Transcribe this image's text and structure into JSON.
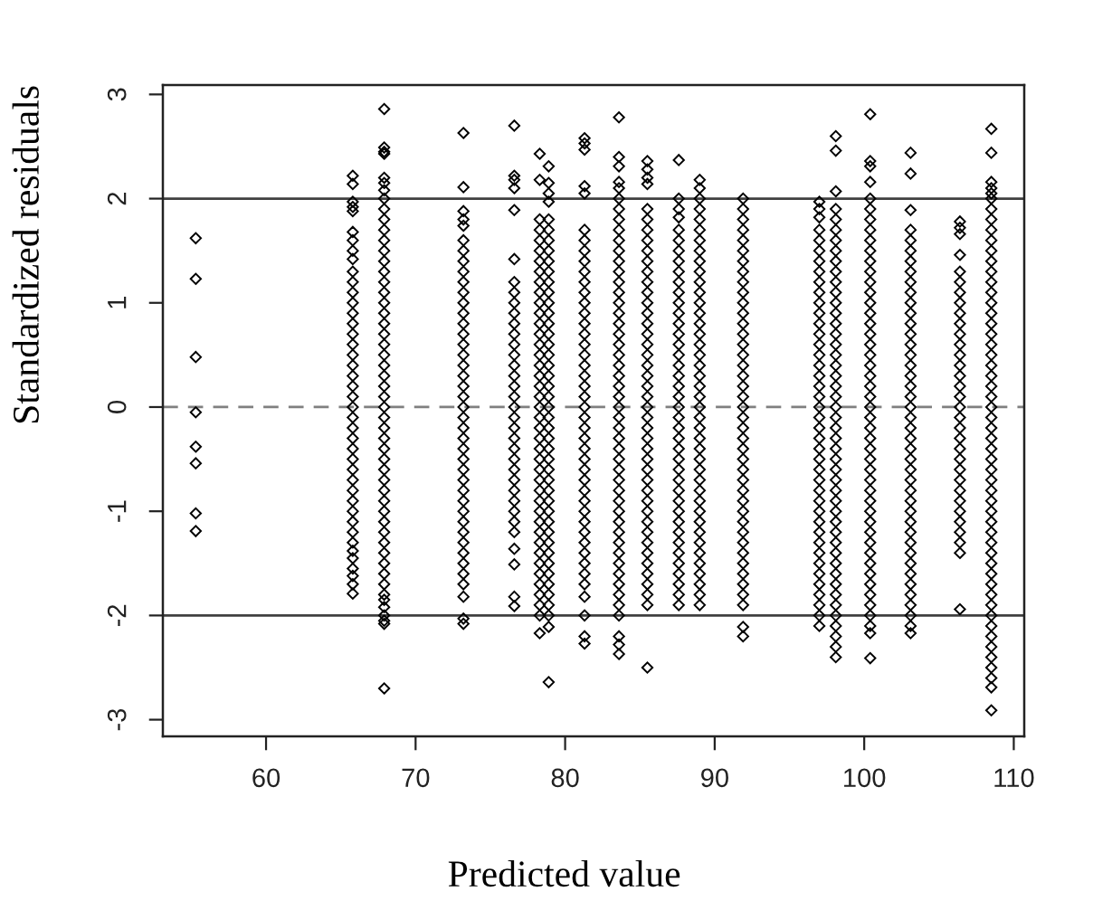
{
  "chart_data": {
    "type": "scatter",
    "xlabel": "Predicted value",
    "ylabel": "Standardized residuals",
    "marker": "diamond",
    "xlim": [
      53.1,
      110.7
    ],
    "ylim": [
      -3.16,
      3.09
    ],
    "xticks": [
      60,
      70,
      80,
      90,
      100,
      110
    ],
    "yticks": [
      -3,
      -2,
      -1,
      0,
      1,
      2,
      3
    ],
    "ref_lines": [
      {
        "axis": "y",
        "value": 2,
        "color": "#404040",
        "line_style": "solid"
      },
      {
        "axis": "y",
        "value": 0,
        "color": "#808080",
        "line_style": "dashed"
      },
      {
        "axis": "y",
        "value": -2,
        "color": "#404040",
        "line_style": "solid"
      }
    ],
    "series": [
      {
        "color": "#000000",
        "x": [
          55.3,
          55.3,
          55.3,
          55.3,
          55.3,
          55.3,
          55.3,
          55.3
        ],
        "values": [
          1.62,
          1.23,
          0.48,
          -0.05,
          -0.38,
          -0.54,
          -1.02,
          -1.19
        ]
      },
      {
        "color": "#000000",
        "x": [
          65.8,
          65.8,
          65.8,
          65.8,
          65.8,
          65.8,
          65.8,
          65.8,
          65.8,
          65.8,
          65.8,
          65.8,
          65.8,
          65.8,
          65.8,
          65.8,
          65.8,
          65.8,
          65.8,
          65.8,
          65.8,
          65.8,
          65.8,
          65.8,
          65.8,
          65.8,
          65.8,
          65.8,
          65.8,
          65.8,
          65.8,
          65.8,
          65.8,
          65.8,
          65.8,
          65.8,
          65.8,
          65.8,
          65.8,
          65.8,
          65.8,
          65.8
        ],
        "values": [
          2.22,
          2.14,
          1.97,
          1.92,
          1.88,
          1.68,
          1.6,
          1.5,
          1.42,
          1.3,
          1.2,
          1.1,
          1,
          0.9,
          0.8,
          0.7,
          0.6,
          0.5,
          0.4,
          0.3,
          0.2,
          0.1,
          0,
          -0.1,
          -0.2,
          -0.3,
          -0.4,
          -0.5,
          -0.6,
          -0.7,
          -0.8,
          -0.9,
          -1,
          -1.1,
          -1.2,
          -1.3,
          -1.38,
          -1.45,
          -1.55,
          -1.62,
          -1.7,
          -1.79
        ]
      },
      {
        "color": "#000000",
        "x": [
          67.9,
          67.9,
          67.9,
          67.9,
          67.9,
          67.9,
          67.9,
          67.9,
          67.9,
          67.9,
          67.9,
          67.9,
          67.9,
          67.9,
          67.9,
          67.9,
          67.9,
          67.9,
          67.9,
          67.9,
          67.9,
          67.9,
          67.9,
          67.9,
          67.9,
          67.9,
          67.9,
          67.9,
          67.9,
          67.9,
          67.9,
          67.9,
          67.9,
          67.9,
          67.9,
          67.9,
          67.9,
          67.9,
          67.9,
          67.9,
          67.9,
          67.9,
          67.9,
          67.9,
          67.9,
          67.9,
          67.9,
          67.9,
          67.9,
          67.9,
          67.9,
          67.9
        ],
        "values": [
          2.86,
          2.49,
          2.45,
          2.43,
          2.2,
          2.15,
          2.08,
          2,
          1.9,
          1.8,
          1.7,
          1.6,
          1.5,
          1.4,
          1.3,
          1.2,
          1.1,
          1,
          0.9,
          0.8,
          0.7,
          0.6,
          0.5,
          0.4,
          0.3,
          0.2,
          0.1,
          0,
          -0.1,
          -0.2,
          -0.3,
          -0.4,
          -0.5,
          -0.6,
          -0.7,
          -0.8,
          -0.9,
          -1,
          -1.1,
          -1.2,
          -1.3,
          -1.4,
          -1.5,
          -1.6,
          -1.7,
          -1.8,
          -1.85,
          -1.92,
          -2,
          -2.05,
          -2.08,
          -2.7
        ]
      },
      {
        "color": "#000000",
        "x": [
          73.2,
          73.2,
          73.2,
          73.2,
          73.2,
          73.2,
          73.2,
          73.2,
          73.2,
          73.2,
          73.2,
          73.2,
          73.2,
          73.2,
          73.2,
          73.2,
          73.2,
          73.2,
          73.2,
          73.2,
          73.2,
          73.2,
          73.2,
          73.2,
          73.2,
          73.2,
          73.2,
          73.2,
          73.2,
          73.2,
          73.2,
          73.2,
          73.2,
          73.2,
          73.2,
          73.2,
          73.2,
          73.2,
          73.2,
          73.2,
          73.2,
          73.2
        ],
        "values": [
          2.63,
          2.11,
          1.88,
          1.8,
          1.74,
          1.6,
          1.5,
          1.4,
          1.3,
          1.2,
          1.1,
          1,
          0.9,
          0.8,
          0.7,
          0.6,
          0.5,
          0.4,
          0.3,
          0.2,
          0.1,
          0,
          -0.1,
          -0.2,
          -0.3,
          -0.4,
          -0.5,
          -0.6,
          -0.7,
          -0.8,
          -0.9,
          -1,
          -1.1,
          -1.2,
          -1.3,
          -1.4,
          -1.5,
          -1.6,
          -1.7,
          -1.82,
          -2.03,
          -2.08
        ]
      },
      {
        "color": "#000000",
        "x": [
          76.6,
          76.6,
          76.6,
          76.6,
          76.6,
          76.6,
          76.6,
          76.6,
          76.6,
          76.6,
          76.6,
          76.6,
          76.6,
          76.6,
          76.6,
          76.6,
          76.6,
          76.6,
          76.6,
          76.6,
          76.6,
          76.6,
          76.6,
          76.6,
          76.6,
          76.6,
          76.6,
          76.6,
          76.6,
          76.6,
          76.6,
          76.6,
          76.6,
          76.6,
          76.6
        ],
        "values": [
          2.7,
          2.22,
          2.18,
          2.1,
          1.89,
          1.42,
          1.2,
          1.1,
          1,
          0.9,
          0.8,
          0.7,
          0.6,
          0.5,
          0.4,
          0.3,
          0.2,
          0.1,
          0,
          -0.1,
          -0.2,
          -0.3,
          -0.4,
          -0.5,
          -0.6,
          -0.7,
          -0.8,
          -0.9,
          -1,
          -1.1,
          -1.2,
          -1.36,
          -1.51,
          -1.82,
          -1.91
        ]
      },
      {
        "color": "#000000",
        "x": [
          78.3,
          78.3,
          78.3,
          78.3,
          78.3,
          78.3,
          78.3,
          78.3,
          78.3,
          78.3,
          78.3,
          78.3,
          78.3,
          78.3,
          78.3,
          78.3,
          78.3,
          78.3,
          78.3,
          78.3,
          78.3,
          78.3,
          78.3,
          78.3,
          78.3,
          78.3,
          78.3,
          78.3,
          78.3,
          78.3,
          78.3,
          78.3,
          78.3,
          78.3,
          78.3,
          78.3,
          78.3,
          78.3,
          78.3,
          78.3,
          78.3,
          78.3
        ],
        "values": [
          2.43,
          2.18,
          1.8,
          1.7,
          1.6,
          1.5,
          1.4,
          1.3,
          1.2,
          1.1,
          1,
          0.9,
          0.8,
          0.7,
          0.6,
          0.5,
          0.4,
          0.3,
          0.2,
          0.1,
          0,
          -0.1,
          -0.2,
          -0.3,
          -0.4,
          -0.5,
          -0.6,
          -0.7,
          -0.8,
          -0.9,
          -1,
          -1.1,
          -1.2,
          -1.3,
          -1.4,
          -1.5,
          -1.6,
          -1.7,
          -1.8,
          -1.9,
          -2,
          -2.17
        ]
      },
      {
        "color": "#000000",
        "x": [
          78.9,
          78.9,
          78.9,
          78.9,
          78.9,
          78.9,
          78.9,
          78.9,
          78.9,
          78.9,
          78.9,
          78.9,
          78.9,
          78.9,
          78.9,
          78.9,
          78.9,
          78.9,
          78.9,
          78.9,
          78.9,
          78.9,
          78.9,
          78.9,
          78.9,
          78.9,
          78.9,
          78.9,
          78.9,
          78.9,
          78.9,
          78.9,
          78.9,
          78.9,
          78.9,
          78.9,
          78.9,
          78.9,
          78.9,
          78.9,
          78.9,
          78.9,
          78.9,
          78.9,
          78.9
        ],
        "values": [
          2.31,
          2.15,
          2.05,
          1.97,
          1.8,
          1.7,
          1.6,
          1.5,
          1.4,
          1.3,
          1.2,
          1.1,
          1,
          0.9,
          0.8,
          0.7,
          0.6,
          0.5,
          0.4,
          0.3,
          0.2,
          0.1,
          0,
          -0.1,
          -0.2,
          -0.3,
          -0.4,
          -0.5,
          -0.6,
          -0.7,
          -0.8,
          -0.9,
          -1,
          -1.1,
          -1.2,
          -1.3,
          -1.4,
          -1.5,
          -1.6,
          -1.7,
          -1.8,
          -1.9,
          -2,
          -2.11,
          -2.64
        ]
      },
      {
        "color": "#000000",
        "x": [
          81.3,
          81.3,
          81.3,
          81.3,
          81.3,
          81.3,
          81.3,
          81.3,
          81.3,
          81.3,
          81.3,
          81.3,
          81.3,
          81.3,
          81.3,
          81.3,
          81.3,
          81.3,
          81.3,
          81.3,
          81.3,
          81.3,
          81.3,
          81.3,
          81.3,
          81.3,
          81.3,
          81.3,
          81.3,
          81.3,
          81.3,
          81.3,
          81.3,
          81.3,
          81.3,
          81.3,
          81.3,
          81.3,
          81.3,
          81.3,
          81.3,
          81.3,
          81.3,
          81.3
        ],
        "values": [
          2.58,
          2.53,
          2.47,
          2.12,
          2.05,
          1.7,
          1.6,
          1.5,
          1.4,
          1.3,
          1.2,
          1.1,
          1,
          0.9,
          0.8,
          0.7,
          0.6,
          0.5,
          0.4,
          0.3,
          0.2,
          0.1,
          0,
          -0.1,
          -0.2,
          -0.3,
          -0.4,
          -0.5,
          -0.6,
          -0.7,
          -0.8,
          -0.9,
          -1,
          -1.1,
          -1.2,
          -1.3,
          -1.4,
          -1.5,
          -1.6,
          -1.7,
          -1.82,
          -2,
          -2.2,
          -2.27
        ]
      },
      {
        "color": "#000000",
        "x": [
          83.6,
          83.6,
          83.6,
          83.6,
          83.6,
          83.6,
          83.6,
          83.6,
          83.6,
          83.6,
          83.6,
          83.6,
          83.6,
          83.6,
          83.6,
          83.6,
          83.6,
          83.6,
          83.6,
          83.6,
          83.6,
          83.6,
          83.6,
          83.6,
          83.6,
          83.6,
          83.6,
          83.6,
          83.6,
          83.6,
          83.6,
          83.6,
          83.6,
          83.6,
          83.6,
          83.6,
          83.6,
          83.6,
          83.6,
          83.6,
          83.6,
          83.6,
          83.6,
          83.6,
          83.6,
          83.6,
          83.6,
          83.6,
          83.6
        ],
        "values": [
          2.78,
          2.4,
          2.31,
          2.16,
          2.1,
          2,
          1.9,
          1.8,
          1.7,
          1.6,
          1.5,
          1.4,
          1.3,
          1.2,
          1.1,
          1,
          0.9,
          0.8,
          0.7,
          0.6,
          0.5,
          0.4,
          0.3,
          0.2,
          0.1,
          0,
          -0.1,
          -0.2,
          -0.3,
          -0.4,
          -0.5,
          -0.6,
          -0.7,
          -0.8,
          -0.9,
          -1,
          -1.1,
          -1.2,
          -1.3,
          -1.4,
          -1.5,
          -1.6,
          -1.7,
          -1.8,
          -1.9,
          -2,
          -2.2,
          -2.28,
          -2.37
        ]
      },
      {
        "color": "#000000",
        "x": [
          85.5,
          85.5,
          85.5,
          85.5,
          85.5,
          85.5,
          85.5,
          85.5,
          85.5,
          85.5,
          85.5,
          85.5,
          85.5,
          85.5,
          85.5,
          85.5,
          85.5,
          85.5,
          85.5,
          85.5,
          85.5,
          85.5,
          85.5,
          85.5,
          85.5,
          85.5,
          85.5,
          85.5,
          85.5,
          85.5,
          85.5,
          85.5,
          85.5,
          85.5,
          85.5,
          85.5,
          85.5,
          85.5,
          85.5,
          85.5,
          85.5,
          85.5,
          85.5,
          85.5
        ],
        "values": [
          2.36,
          2.28,
          2.2,
          2.14,
          1.9,
          1.8,
          1.7,
          1.6,
          1.5,
          1.4,
          1.3,
          1.2,
          1.1,
          1,
          0.9,
          0.8,
          0.7,
          0.6,
          0.5,
          0.4,
          0.3,
          0.2,
          0.1,
          0,
          -0.1,
          -0.2,
          -0.3,
          -0.4,
          -0.5,
          -0.6,
          -0.7,
          -0.8,
          -0.9,
          -1,
          -1.1,
          -1.2,
          -1.3,
          -1.4,
          -1.5,
          -1.6,
          -1.7,
          -1.8,
          -1.9,
          -2.5
        ]
      },
      {
        "color": "#000000",
        "x": [
          87.6,
          87.6,
          87.6,
          87.6,
          87.6,
          87.6,
          87.6,
          87.6,
          87.6,
          87.6,
          87.6,
          87.6,
          87.6,
          87.6,
          87.6,
          87.6,
          87.6,
          87.6,
          87.6,
          87.6,
          87.6,
          87.6,
          87.6,
          87.6,
          87.6,
          87.6,
          87.6,
          87.6,
          87.6,
          87.6,
          87.6,
          87.6,
          87.6,
          87.6,
          87.6,
          87.6,
          87.6,
          87.6,
          87.6,
          87.6,
          87.6
        ],
        "values": [
          2.37,
          2,
          1.9,
          1.82,
          1.7,
          1.6,
          1.5,
          1.4,
          1.3,
          1.2,
          1.1,
          1,
          0.9,
          0.8,
          0.7,
          0.6,
          0.5,
          0.4,
          0.3,
          0.2,
          0.1,
          0,
          -0.1,
          -0.2,
          -0.3,
          -0.4,
          -0.5,
          -0.6,
          -0.7,
          -0.8,
          -0.9,
          -1,
          -1.1,
          -1.2,
          -1.3,
          -1.4,
          -1.5,
          -1.6,
          -1.7,
          -1.8,
          -1.9
        ]
      },
      {
        "color": "#000000",
        "x": [
          89,
          89,
          89,
          89,
          89,
          89,
          89,
          89,
          89,
          89,
          89,
          89,
          89,
          89,
          89,
          89,
          89,
          89,
          89,
          89,
          89,
          89,
          89,
          89,
          89,
          89,
          89,
          89,
          89,
          89,
          89,
          89,
          89,
          89,
          89,
          89,
          89,
          89,
          89,
          89,
          89,
          89
        ],
        "values": [
          2.18,
          2.1,
          2,
          1.9,
          1.8,
          1.7,
          1.6,
          1.5,
          1.4,
          1.3,
          1.2,
          1.1,
          1,
          0.9,
          0.8,
          0.7,
          0.6,
          0.5,
          0.4,
          0.3,
          0.2,
          0.1,
          0,
          -0.1,
          -0.2,
          -0.3,
          -0.4,
          -0.5,
          -0.6,
          -0.7,
          -0.8,
          -0.9,
          -1,
          -1.1,
          -1.2,
          -1.3,
          -1.4,
          -1.5,
          -1.6,
          -1.7,
          -1.8,
          -1.9
        ]
      },
      {
        "color": "#000000",
        "x": [
          91.9,
          91.9,
          91.9,
          91.9,
          91.9,
          91.9,
          91.9,
          91.9,
          91.9,
          91.9,
          91.9,
          91.9,
          91.9,
          91.9,
          91.9,
          91.9,
          91.9,
          91.9,
          91.9,
          91.9,
          91.9,
          91.9,
          91.9,
          91.9,
          91.9,
          91.9,
          91.9,
          91.9,
          91.9,
          91.9,
          91.9,
          91.9,
          91.9,
          91.9,
          91.9,
          91.9,
          91.9,
          91.9,
          91.9,
          91.9,
          91.9,
          91.9
        ],
        "values": [
          2,
          1.9,
          1.8,
          1.7,
          1.6,
          1.5,
          1.4,
          1.3,
          1.2,
          1.1,
          1,
          0.9,
          0.8,
          0.7,
          0.6,
          0.5,
          0.4,
          0.3,
          0.2,
          0.1,
          0,
          -0.1,
          -0.2,
          -0.3,
          -0.4,
          -0.5,
          -0.6,
          -0.7,
          -0.8,
          -0.9,
          -1,
          -1.1,
          -1.2,
          -1.3,
          -1.4,
          -1.5,
          -1.6,
          -1.7,
          -1.8,
          -1.9,
          -2.11,
          -2.2
        ]
      },
      {
        "color": "#000000",
        "x": [
          97,
          97,
          97,
          97,
          97,
          97,
          97,
          97,
          97,
          97,
          97,
          97,
          97,
          97,
          97,
          97,
          97,
          97,
          97,
          97,
          97,
          97,
          97,
          97,
          97,
          97,
          97,
          97,
          97,
          97,
          97,
          97,
          97,
          97,
          97,
          97,
          97,
          97,
          97,
          97,
          97,
          97
        ],
        "values": [
          1.97,
          1.9,
          1.82,
          1.7,
          1.6,
          1.5,
          1.4,
          1.3,
          1.2,
          1.1,
          1,
          0.9,
          0.8,
          0.7,
          0.6,
          0.5,
          0.4,
          0.3,
          0.2,
          0.1,
          0,
          -0.1,
          -0.2,
          -0.3,
          -0.4,
          -0.5,
          -0.6,
          -0.7,
          -0.8,
          -0.9,
          -1,
          -1.1,
          -1.2,
          -1.3,
          -1.4,
          -1.5,
          -1.6,
          -1.7,
          -1.8,
          -1.9,
          -2,
          -2.1
        ]
      },
      {
        "color": "#000000",
        "x": [
          98.1,
          98.1,
          98.1,
          98.1,
          98.1,
          98.1,
          98.1,
          98.1,
          98.1,
          98.1,
          98.1,
          98.1,
          98.1,
          98.1,
          98.1,
          98.1,
          98.1,
          98.1,
          98.1,
          98.1,
          98.1,
          98.1,
          98.1,
          98.1,
          98.1,
          98.1,
          98.1,
          98.1,
          98.1,
          98.1,
          98.1,
          98.1,
          98.1,
          98.1,
          98.1,
          98.1,
          98.1,
          98.1,
          98.1,
          98.1,
          98.1,
          98.1,
          98.1,
          98.1,
          98.1,
          98.1,
          98.1
        ],
        "values": [
          2.6,
          2.46,
          2.07,
          1.9,
          1.8,
          1.7,
          1.6,
          1.5,
          1.4,
          1.3,
          1.2,
          1.1,
          1,
          0.9,
          0.8,
          0.7,
          0.6,
          0.5,
          0.4,
          0.3,
          0.2,
          0.1,
          0,
          -0.1,
          -0.2,
          -0.3,
          -0.4,
          -0.5,
          -0.6,
          -0.7,
          -0.8,
          -0.9,
          -1,
          -1.1,
          -1.2,
          -1.3,
          -1.4,
          -1.5,
          -1.6,
          -1.7,
          -1.8,
          -1.9,
          -2,
          -2.1,
          -2.2,
          -2.3,
          -2.4
        ]
      },
      {
        "color": "#000000",
        "x": [
          100.4,
          100.4,
          100.4,
          100.4,
          100.4,
          100.4,
          100.4,
          100.4,
          100.4,
          100.4,
          100.4,
          100.4,
          100.4,
          100.4,
          100.4,
          100.4,
          100.4,
          100.4,
          100.4,
          100.4,
          100.4,
          100.4,
          100.4,
          100.4,
          100.4,
          100.4,
          100.4,
          100.4,
          100.4,
          100.4,
          100.4,
          100.4,
          100.4,
          100.4,
          100.4,
          100.4,
          100.4,
          100.4,
          100.4,
          100.4,
          100.4,
          100.4,
          100.4,
          100.4,
          100.4,
          100.4,
          100.4,
          100.4
        ],
        "values": [
          2.81,
          2.36,
          2.31,
          2.16,
          2,
          1.9,
          1.8,
          1.7,
          1.6,
          1.5,
          1.4,
          1.3,
          1.2,
          1.1,
          1,
          0.9,
          0.8,
          0.7,
          0.6,
          0.5,
          0.4,
          0.3,
          0.2,
          0.1,
          0,
          -0.1,
          -0.2,
          -0.3,
          -0.4,
          -0.5,
          -0.6,
          -0.7,
          -0.8,
          -0.9,
          -1,
          -1.1,
          -1.2,
          -1.3,
          -1.4,
          -1.5,
          -1.6,
          -1.7,
          -1.8,
          -1.9,
          -2,
          -2.1,
          -2.17,
          -2.41
        ]
      },
      {
        "color": "#000000",
        "x": [
          103.1,
          103.1,
          103.1,
          103.1,
          103.1,
          103.1,
          103.1,
          103.1,
          103.1,
          103.1,
          103.1,
          103.1,
          103.1,
          103.1,
          103.1,
          103.1,
          103.1,
          103.1,
          103.1,
          103.1,
          103.1,
          103.1,
          103.1,
          103.1,
          103.1,
          103.1,
          103.1,
          103.1,
          103.1,
          103.1,
          103.1,
          103.1,
          103.1,
          103.1,
          103.1,
          103.1,
          103.1,
          103.1,
          103.1,
          103.1,
          103.1,
          103.1,
          103.1
        ],
        "values": [
          2.44,
          2.24,
          1.89,
          1.7,
          1.6,
          1.5,
          1.4,
          1.3,
          1.2,
          1.1,
          1,
          0.9,
          0.8,
          0.7,
          0.6,
          0.5,
          0.4,
          0.3,
          0.2,
          0.1,
          0,
          -0.1,
          -0.2,
          -0.3,
          -0.4,
          -0.5,
          -0.6,
          -0.7,
          -0.8,
          -0.9,
          -1,
          -1.1,
          -1.2,
          -1.3,
          -1.4,
          -1.5,
          -1.6,
          -1.7,
          -1.8,
          -1.9,
          -2,
          -2.1,
          -2.17
        ]
      },
      {
        "color": "#000000",
        "x": [
          106.4,
          106.4,
          106.4,
          106.4,
          106.4,
          106.4,
          106.4,
          106.4,
          106.4,
          106.4,
          106.4,
          106.4,
          106.4,
          106.4,
          106.4,
          106.4,
          106.4,
          106.4,
          106.4,
          106.4,
          106.4,
          106.4,
          106.4,
          106.4,
          106.4,
          106.4,
          106.4,
          106.4,
          106.4,
          106.4,
          106.4,
          106.4,
          106.4
        ],
        "values": [
          1.78,
          1.72,
          1.66,
          1.46,
          1.3,
          1.2,
          1.1,
          1,
          0.9,
          0.8,
          0.7,
          0.6,
          0.5,
          0.4,
          0.3,
          0.2,
          0.1,
          0,
          -0.1,
          -0.2,
          -0.3,
          -0.4,
          -0.5,
          -0.6,
          -0.7,
          -0.8,
          -0.9,
          -1,
          -1.1,
          -1.2,
          -1.3,
          -1.4,
          -1.94
        ]
      },
      {
        "color": "#000000",
        "x": [
          108.5,
          108.5,
          108.5,
          108.5,
          108.5,
          108.5,
          108.5,
          108.5,
          108.5,
          108.5,
          108.5,
          108.5,
          108.5,
          108.5,
          108.5,
          108.5,
          108.5,
          108.5,
          108.5,
          108.5,
          108.5,
          108.5,
          108.5,
          108.5,
          108.5,
          108.5,
          108.5,
          108.5,
          108.5,
          108.5,
          108.5,
          108.5,
          108.5,
          108.5,
          108.5,
          108.5,
          108.5,
          108.5,
          108.5,
          108.5,
          108.5,
          108.5,
          108.5,
          108.5,
          108.5,
          108.5,
          108.5,
          108.5,
          108.5,
          108.5,
          108.5,
          108.5,
          108.5,
          108.5
        ],
        "values": [
          2.67,
          2.44,
          2.16,
          2.1,
          2.05,
          2,
          1.9,
          1.8,
          1.7,
          1.6,
          1.5,
          1.4,
          1.3,
          1.2,
          1.1,
          1,
          0.9,
          0.8,
          0.7,
          0.6,
          0.5,
          0.4,
          0.3,
          0.2,
          0.1,
          0,
          -0.1,
          -0.2,
          -0.3,
          -0.4,
          -0.5,
          -0.6,
          -0.7,
          -0.8,
          -0.9,
          -1,
          -1.1,
          -1.2,
          -1.3,
          -1.4,
          -1.5,
          -1.6,
          -1.7,
          -1.8,
          -1.9,
          -2,
          -2.1,
          -2.2,
          -2.3,
          -2.4,
          -2.5,
          -2.6,
          -2.69,
          -2.91
        ]
      }
    ]
  }
}
